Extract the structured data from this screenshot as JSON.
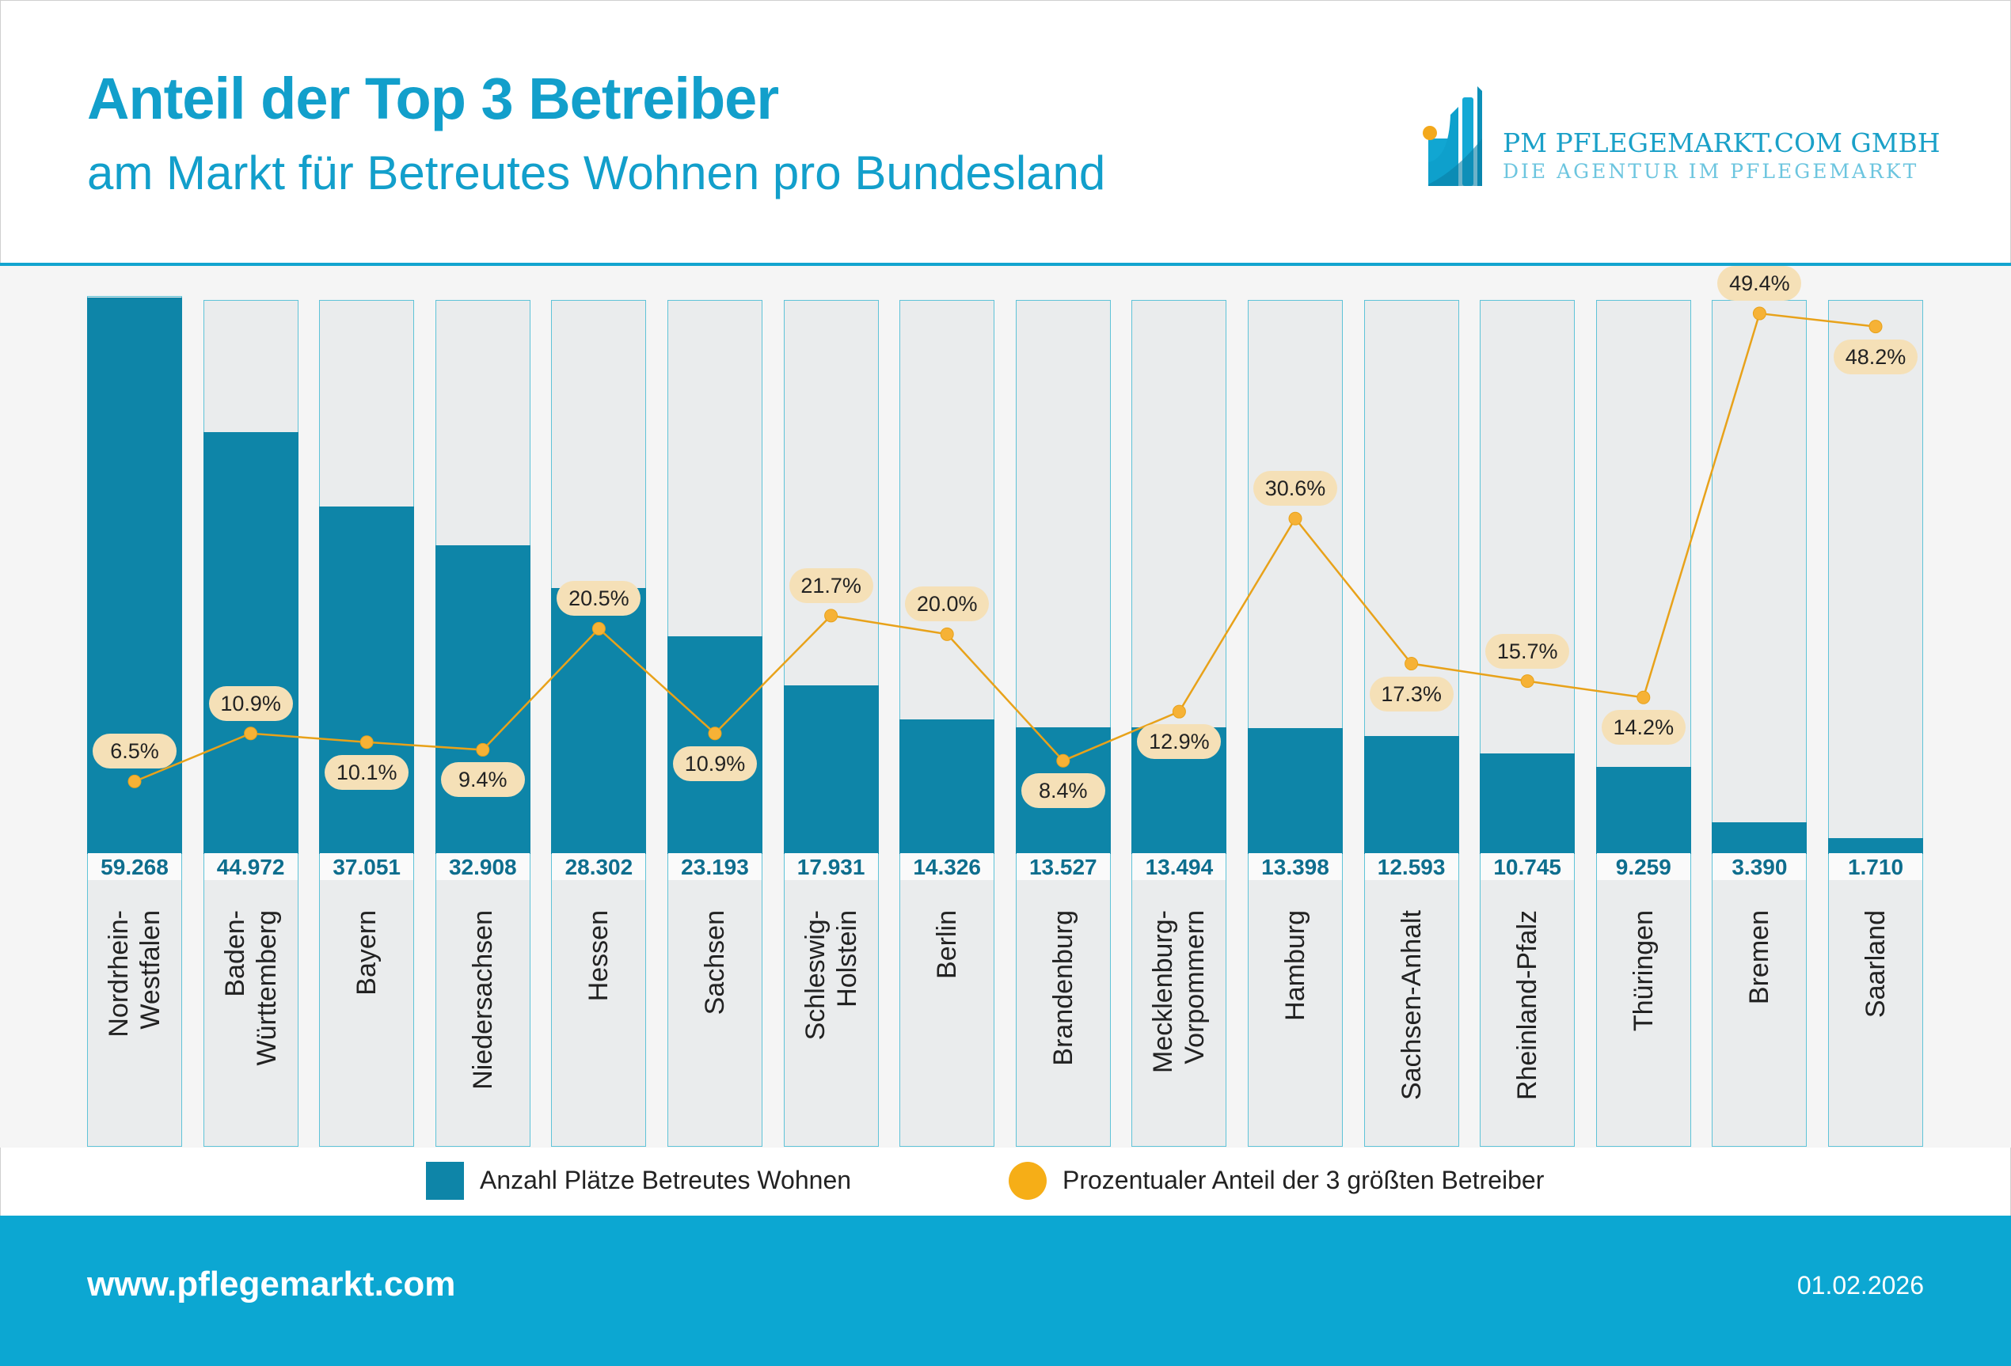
{
  "header": {
    "title": "Anteil der Top 3 Betreiber",
    "subtitle": "am Markt für Betreutes Wohnen pro Bundesland"
  },
  "logo": {
    "line1": "PM  PFLEGEMARKT.COM GMBH",
    "line2": "DIE AGENTUR IM PFLEGEMARKT"
  },
  "footer": {
    "url": "www.pflegemarkt.com",
    "date": "01.02.2026"
  },
  "colors": {
    "brand": "#12a4cf",
    "bar": "#0e85a8",
    "bar_background": "#eaeced",
    "line": "#e8a21a",
    "point": "#f6b236",
    "chip": "#f5e0b7"
  },
  "chart_data": {
    "type": "bar+line",
    "categories": [
      "Nordrhein-\nWestfalen",
      "Baden-\nWürttemberg",
      "Bayern",
      "Niedersachsen",
      "Hessen",
      "Sachsen",
      "Schleswig-\nHolstein",
      "Berlin",
      "Brandenburg",
      "Mecklenburg-\nVorpommern",
      "Hamburg",
      "Sachsen-Anhalt",
      "Rheinland-Pfalz",
      "Thüringen",
      "Bremen",
      "Saarland"
    ],
    "series": [
      {
        "name": "Anzahl Plätze Betreutes Wohnen",
        "type": "bar",
        "values": [
          59268,
          44972,
          37051,
          32908,
          28302,
          23193,
          17931,
          14326,
          13527,
          13494,
          13398,
          12593,
          10745,
          9259,
          3390,
          1710
        ],
        "labels": [
          "59.268",
          "44.972",
          "37.051",
          "32.908",
          "28.302",
          "23.193",
          "17.931",
          "14.326",
          "13.527",
          "13.494",
          "13.398",
          "12.593",
          "10.745",
          "9.259",
          "3.390",
          "1.710"
        ]
      },
      {
        "name": "Prozentualer Anteil der 3 größten Betreiber",
        "type": "line",
        "values": [
          6.5,
          10.9,
          10.1,
          9.4,
          20.5,
          10.9,
          21.7,
          20.0,
          8.4,
          12.9,
          30.6,
          17.3,
          15.7,
          14.2,
          49.4,
          48.2
        ],
        "labels": [
          "6.5%",
          "10.9%",
          "10.1%",
          "9.4%",
          "20.5%",
          "10.9%",
          "21.7%",
          "20.0%",
          "8.4%",
          "12.9%",
          "30.6%",
          "17.3%",
          "15.7%",
          "14.2%",
          "49.4%",
          "48.2%"
        ]
      }
    ],
    "bar_ylim": [
      0,
      59268
    ],
    "line_ylim": [
      0,
      51
    ],
    "grid": false,
    "legend": {
      "placement": "bottom",
      "bar_label": "Anzahl Plätze Betreutes Wohnen",
      "line_label": "Prozentualer Anteil der 3 größten Betreiber"
    }
  }
}
